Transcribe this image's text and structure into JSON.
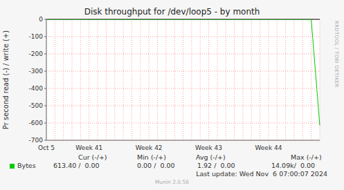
{
  "chart_data": {
    "type": "line",
    "title": "Disk throughput for /dev/loop5 - by month",
    "y_label": "Pr second read (-) / write (+)",
    "categories": [
      "Oct 5",
      null,
      null,
      null,
      null,
      "Week 41",
      null,
      null,
      null,
      null,
      null,
      null,
      "Week 42",
      null,
      null,
      null,
      null,
      null,
      null,
      "Week 43",
      null,
      null,
      null,
      null,
      null,
      null,
      "Week 44",
      null,
      null,
      null,
      null,
      null,
      null
    ],
    "series": [
      {
        "name": "Bytes",
        "color": "#00cc00",
        "values": [
          0,
          0,
          0,
          0,
          0,
          0,
          0,
          0,
          0,
          0,
          0,
          0,
          0,
          0,
          0,
          0,
          0,
          0,
          0,
          0,
          0,
          0,
          0,
          0,
          0,
          0,
          0,
          0,
          0,
          0,
          0,
          0,
          -613.4
        ]
      }
    ],
    "ylim": [
      -700,
      0
    ],
    "yticks": [
      -700,
      -600,
      -500,
      -400,
      -300,
      -200,
      -100,
      0
    ],
    "grid": true,
    "legend_table": {
      "columns": [
        "Cur (-/+)",
        "Min (-/+)",
        "Avg (-/+)",
        "Max (-/+)"
      ],
      "rows": [
        {
          "name": "Bytes",
          "color": "#00cc00",
          "values": [
            "613.40 /  0.00",
            "0.00 /  0.00",
            "1.92 /  0.00",
            "14.09k/  0.00"
          ]
        }
      ]
    },
    "last_update": "Last update: Wed Nov  6 07:00:07 2024",
    "footer": "Munin 2.0.56",
    "side_text": "RRDTOOL / TOBI OETIKER"
  }
}
